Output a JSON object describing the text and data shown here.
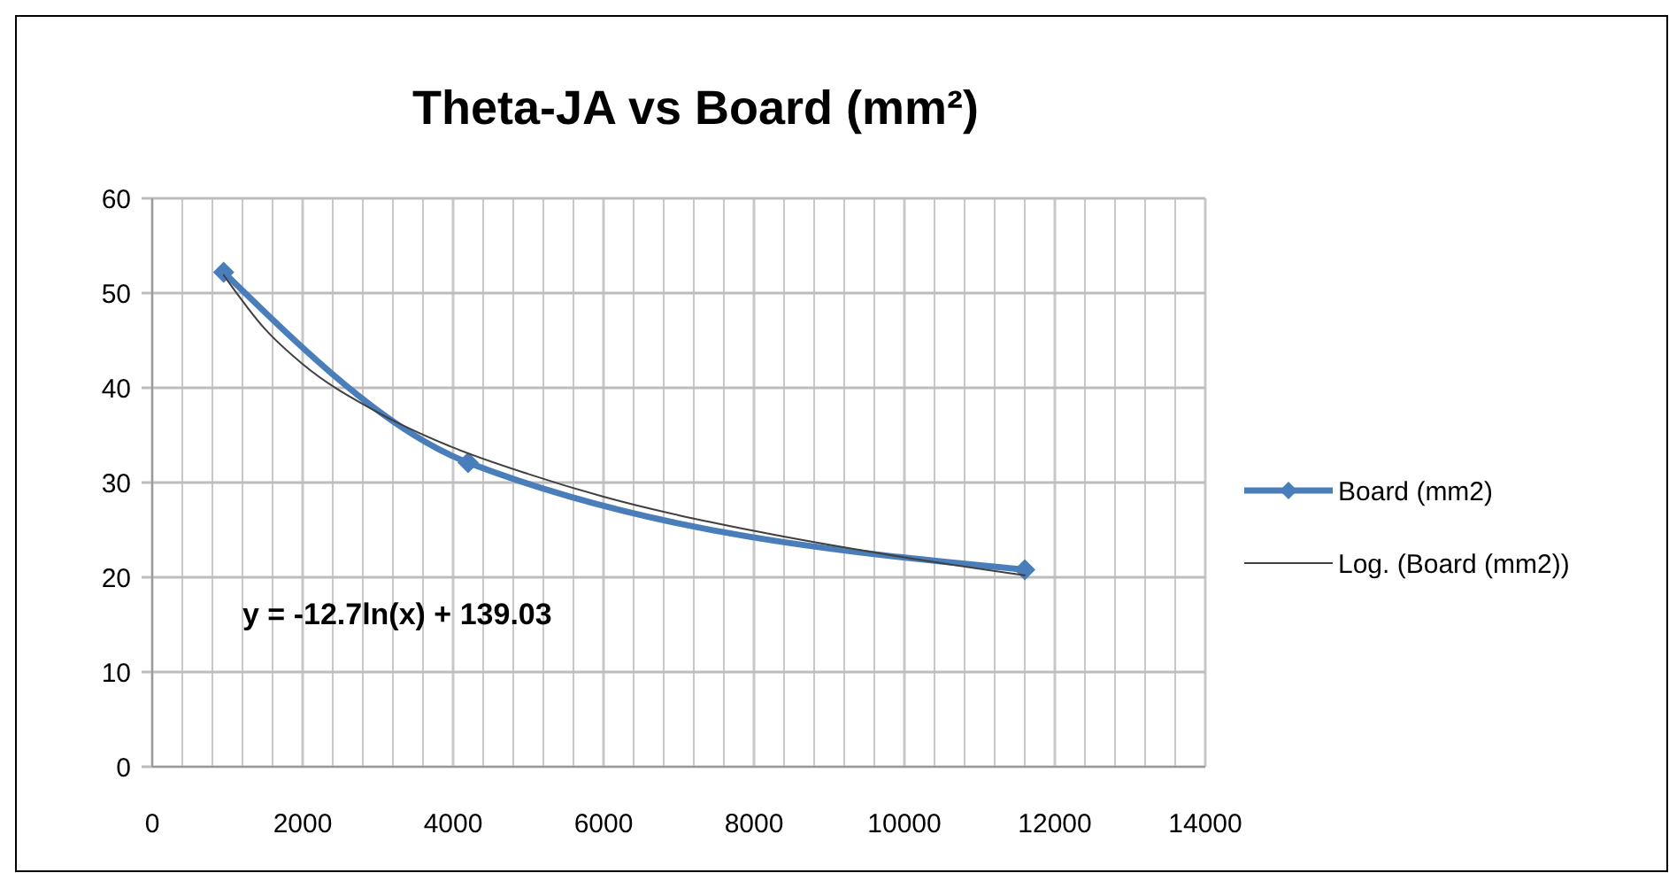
{
  "chart_data": {
    "type": "line",
    "title": "Theta-JA vs Board (mm²)",
    "xlim": [
      0,
      14000
    ],
    "ylim": [
      0,
      60
    ],
    "xticks": [
      0,
      {
        "value": 400,
        "label": null
      },
      {
        "value": 800,
        "label": null
      },
      {
        "value": 1200,
        "label": null
      },
      {
        "value": 1600,
        "label": null
      },
      2000,
      {
        "value": 2400,
        "label": null
      },
      {
        "value": 2800,
        "label": null
      },
      {
        "value": 3200,
        "label": null
      },
      {
        "value": 3600,
        "label": null
      },
      4000,
      {
        "value": 4400,
        "label": null
      },
      {
        "value": 4800,
        "label": null
      },
      {
        "value": 5200,
        "label": null
      },
      {
        "value": 5600,
        "label": null
      },
      6000,
      {
        "value": 6400,
        "label": null
      },
      {
        "value": 6800,
        "label": null
      },
      {
        "value": 7200,
        "label": null
      },
      {
        "value": 7600,
        "label": null
      },
      8000,
      {
        "value": 8400,
        "label": null
      },
      {
        "value": 8800,
        "label": null
      },
      {
        "value": 9200,
        "label": null
      },
      {
        "value": 9600,
        "label": null
      },
      10000,
      {
        "value": 10400,
        "label": null
      },
      {
        "value": 10800,
        "label": null
      },
      {
        "value": 11200,
        "label": null
      },
      {
        "value": 11600,
        "label": null
      },
      12000,
      {
        "value": 12400,
        "label": null
      },
      {
        "value": 12800,
        "label": null
      },
      {
        "value": 13200,
        "label": null
      },
      {
        "value": 13600,
        "label": null
      },
      14000
    ],
    "yticks": [
      0,
      10,
      20,
      30,
      40,
      50,
      60
    ],
    "grid": true,
    "legend": "right",
    "series": [
      {
        "name": "Board (mm2)",
        "color": "#4a7ebb",
        "x": [
          950,
          4200,
          11600
        ],
        "values": [
          52.2,
          32.1,
          20.8
        ],
        "marker": "diamond",
        "line_style": "solid"
      },
      {
        "name": "Log. (Board (mm2))",
        "type": "line",
        "color": "#404040",
        "x": [
          950,
          1500,
          2000,
          3000,
          4000,
          5000,
          6000,
          8000,
          10000,
          11600
        ],
        "values": [
          51.9,
          46.2,
          42.5,
          37.4,
          33.7,
          30.9,
          28.5,
          24.9,
          22.1,
          20.2
        ],
        "marker": "none",
        "line_style": "solid"
      }
    ],
    "annotations": [
      "y = -12.7ln(x) + 139.03"
    ]
  }
}
